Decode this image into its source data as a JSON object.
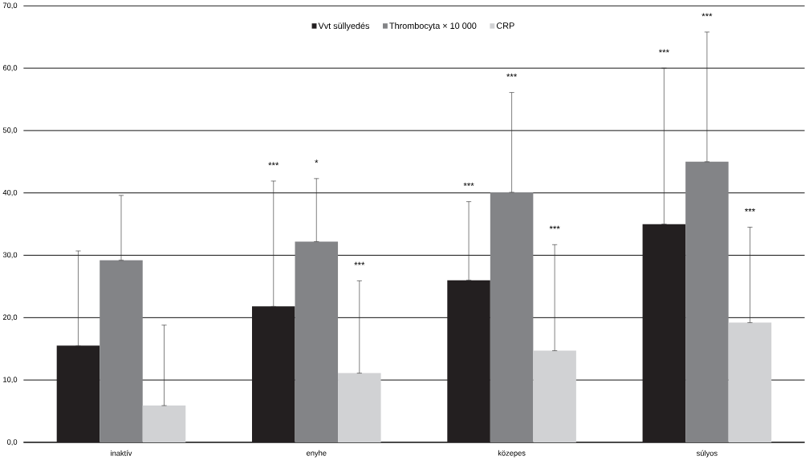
{
  "chart_data": {
    "type": "bar",
    "categories": [
      "inaktív",
      "enyhe",
      "közepes",
      "súlyos"
    ],
    "series": [
      {
        "name": "Vvt süllyedés",
        "color": "#231f20",
        "values": [
          15.5,
          21.8,
          26.0,
          35.0
        ],
        "errors": [
          [
            15.5,
            30.7
          ],
          [
            21.8,
            41.9
          ],
          [
            26.0,
            38.6
          ],
          [
            35.0,
            60.0
          ]
        ]
      },
      {
        "name": "Thrombocyta × 10 000",
        "color": "#838487",
        "values": [
          29.2,
          32.2,
          40.1,
          45.0
        ],
        "errors": [
          [
            29.2,
            39.6
          ],
          [
            32.2,
            42.3
          ],
          [
            40.1,
            56.1
          ],
          [
            45.0,
            65.8
          ]
        ]
      },
      {
        "name": "CRP",
        "color": "#d1d2d4",
        "values": [
          5.9,
          11.1,
          14.7,
          19.2
        ],
        "errors": [
          [
            5.9,
            18.8
          ],
          [
            11.1,
            25.9
          ],
          [
            14.7,
            31.7
          ],
          [
            19.2,
            34.5
          ]
        ]
      }
    ],
    "ylim": [
      0,
      70
    ],
    "yticks": [
      {
        "value": 0,
        "label": "0,0"
      },
      {
        "value": 10,
        "label": "10,0"
      },
      {
        "value": 20,
        "label": "20,0"
      },
      {
        "value": 30,
        "label": "30,0"
      },
      {
        "value": 40,
        "label": "40,0"
      },
      {
        "value": 50,
        "label": "50,0"
      },
      {
        "value": 60,
        "label": "60,0"
      },
      {
        "value": 70,
        "label": "70,0"
      }
    ],
    "grid": "y",
    "legend": "top",
    "annotations": [
      "***",
      "*",
      "***",
      "***",
      "***",
      "***",
      "***",
      "***",
      "***"
    ]
  }
}
